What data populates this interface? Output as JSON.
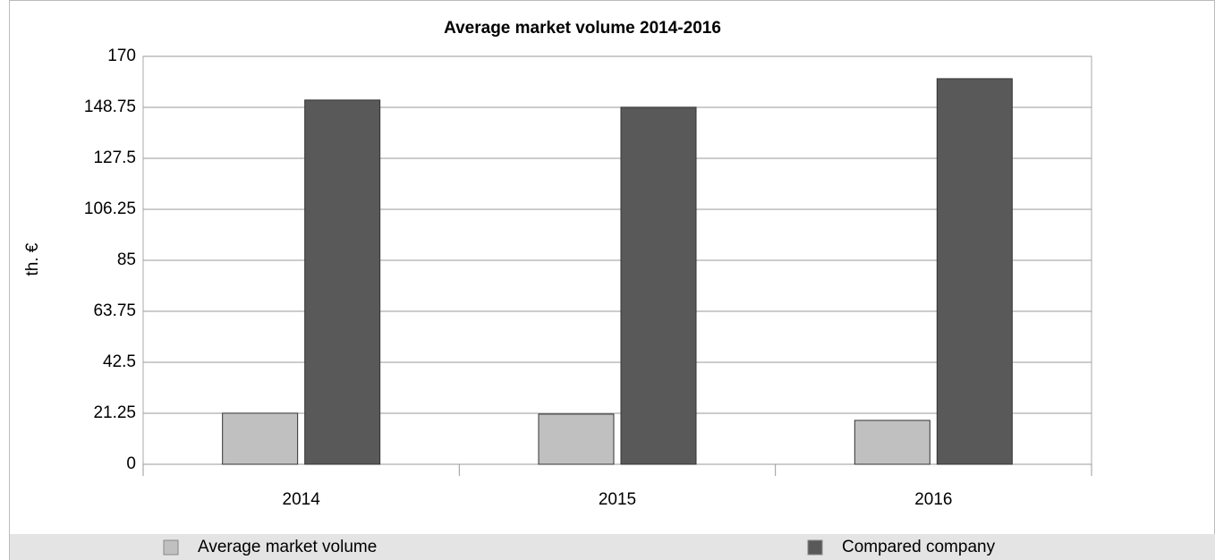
{
  "chart_data": {
    "type": "bar",
    "title": "Average market volume 2014-2016",
    "y_label": "th. €",
    "categories": [
      "2014",
      "2015",
      "2016"
    ],
    "series": [
      {
        "name": "Average market volume",
        "color": "#c0c0c0",
        "values": [
          21.3,
          20.9,
          18.3
        ]
      },
      {
        "name": "Compared company",
        "color": "#595959",
        "values": [
          151.8,
          148.8,
          160.7
        ]
      }
    ],
    "ylim": [
      0,
      170
    ],
    "yticks": [
      0,
      21.25,
      42.5,
      63.75,
      85,
      106.25,
      127.5,
      148.75,
      170
    ],
    "grid": true,
    "legend": "bottom"
  }
}
